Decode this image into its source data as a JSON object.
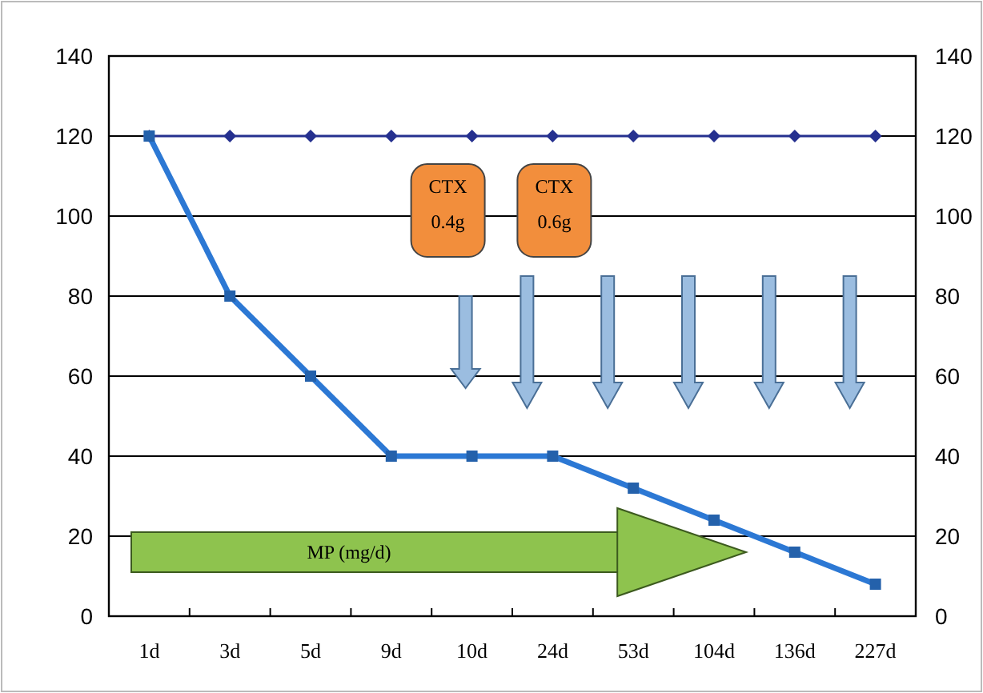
{
  "chart_data": {
    "type": "line",
    "categories": [
      "1d",
      "3d",
      "5d",
      "9d",
      "10d",
      "24d",
      "53d",
      "104d",
      "136d",
      "227d"
    ],
    "series": [
      {
        "color": "#25308f",
        "marker": "diamond",
        "values": [
          120,
          120,
          120,
          120,
          120,
          120,
          120,
          120,
          120,
          120
        ]
      },
      {
        "color": "#2c78d4",
        "marker": "square",
        "values": [
          120,
          80,
          60,
          40,
          40,
          40,
          32,
          24,
          16,
          8
        ]
      }
    ],
    "ylim": [
      0,
      140
    ],
    "yticks": [
      0,
      20,
      40,
      60,
      80,
      100,
      120,
      140
    ],
    "y2lim": [
      0,
      140
    ],
    "y2ticks": [
      0,
      20,
      40,
      60,
      80,
      100,
      120,
      140
    ],
    "grid": "y",
    "annotations": [
      "CTX\n0.4g",
      "CTX\n0.6g",
      "MP (mg/d)"
    ]
  }
}
